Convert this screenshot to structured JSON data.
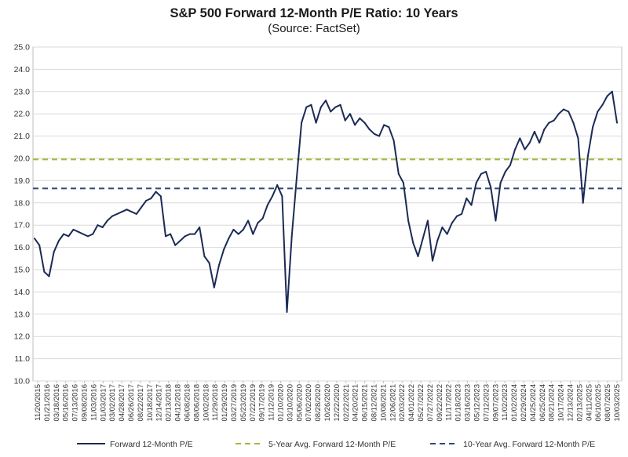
{
  "chart_data": {
    "type": "line",
    "title": "S&P 500 Forward 12-Month P/E Ratio: 10 Years",
    "subtitle": "(Source: FactSet)",
    "xlabel": "",
    "ylabel": "",
    "ylim": [
      10.0,
      25.0
    ],
    "yticks": [
      "10.0",
      "11.0",
      "12.0",
      "13.0",
      "14.0",
      "15.0",
      "16.0",
      "17.0",
      "18.0",
      "19.0",
      "20.0",
      "21.0",
      "22.0",
      "23.0",
      "24.0",
      "25.0"
    ],
    "xticks": [
      "11/20/2015",
      "01/21/2016",
      "03/18/2016",
      "05/16/2016",
      "07/13/2016",
      "09/08/2016",
      "11/03/2016",
      "01/03/2017",
      "03/02/2017",
      "04/28/2017",
      "06/26/2017",
      "08/22/2017",
      "10/18/2017",
      "12/14/2017",
      "02/13/2018",
      "04/12/2018",
      "06/08/2018",
      "08/06/2018",
      "10/02/2018",
      "11/29/2018",
      "01/29/2019",
      "03/27/2019",
      "05/23/2019",
      "07/22/2019",
      "09/17/2019",
      "11/12/2019",
      "01/10/2020",
      "03/10/2020",
      "05/06/2020",
      "07/02/2020",
      "08/28/2020",
      "10/26/2020",
      "12/22/2020",
      "02/22/2021",
      "04/20/2021",
      "06/15/2021",
      "08/12/2021",
      "10/08/2021",
      "12/06/2021",
      "02/03/2022",
      "04/01/2022",
      "05/27/2022",
      "07/27/2022",
      "09/22/2022",
      "11/17/2022",
      "01/18/2023",
      "03/16/2023",
      "05/12/2023",
      "07/12/2023",
      "09/07/2023",
      "11/02/2023",
      "01/02/2024",
      "02/29/2024",
      "04/25/2024",
      "06/25/2024",
      "08/21/2024",
      "10/17/2024",
      "12/13/2024",
      "02/13/2025",
      "04/11/2025",
      "06/10/2025",
      "08/07/2025",
      "10/03/2025"
    ],
    "grid": true,
    "legend_position": "bottom",
    "colors": {
      "main": "#1c2b55",
      "avg5": "#9bbb3c",
      "avg10": "#2e4a7a",
      "grid": "#d9d9d9"
    },
    "series": [
      {
        "name": "Forward 12-Month P/E",
        "style": "solid",
        "x": [
          "11/20/2015",
          "12/2015",
          "01/2016",
          "02/2016",
          "03/2016",
          "04/2016",
          "05/2016",
          "06/2016",
          "07/2016",
          "08/2016",
          "09/2016",
          "10/2016",
          "11/2016",
          "12/2016",
          "01/2017",
          "02/2017",
          "03/2017",
          "04/2017",
          "05/2017",
          "06/2017",
          "07/2017",
          "08/2017",
          "09/2017",
          "10/2017",
          "11/2017",
          "12/2017",
          "01/2018",
          "02/2018",
          "03/2018",
          "04/2018",
          "05/2018",
          "06/2018",
          "07/2018",
          "08/2018",
          "09/2018",
          "10/2018",
          "11/2018",
          "12/2018",
          "01/2019",
          "02/2019",
          "03/2019",
          "04/2019",
          "05/2019",
          "06/2019",
          "07/2019",
          "08/2019",
          "09/2019",
          "10/2019",
          "11/2019",
          "12/2019",
          "01/2020",
          "02/2020",
          "03/2020",
          "04/2020",
          "05/2020",
          "06/2020",
          "07/2020",
          "08/2020",
          "09/2020",
          "10/2020",
          "11/2020",
          "12/2020",
          "01/2021",
          "02/2021",
          "03/2021",
          "04/2021",
          "05/2021",
          "06/2021",
          "07/2021",
          "08/2021",
          "09/2021",
          "10/2021",
          "11/2021",
          "12/2021",
          "01/2022",
          "02/2022",
          "03/2022",
          "04/2022",
          "05/2022",
          "06/2022",
          "07/2022",
          "08/2022",
          "09/2022",
          "10/2022",
          "11/2022",
          "12/2022",
          "01/2023",
          "02/2023",
          "03/2023",
          "04/2023",
          "05/2023",
          "06/2023",
          "07/2023",
          "08/2023",
          "09/2023",
          "10/2023",
          "11/2023",
          "12/2023",
          "01/2024",
          "02/2024",
          "03/2024",
          "04/2024",
          "05/2024",
          "06/2024",
          "07/2024",
          "08/2024",
          "09/2024",
          "10/2024",
          "11/2024",
          "12/2024",
          "01/2025",
          "02/2025",
          "03/2025",
          "04/2025",
          "05/2025",
          "06/2025",
          "07/2025",
          "08/2025",
          "09/2025",
          "10/2025",
          "11/2025"
        ],
        "values": [
          16.4,
          16.1,
          14.9,
          14.7,
          15.8,
          16.3,
          16.6,
          16.5,
          16.8,
          16.7,
          16.6,
          16.5,
          16.6,
          17.0,
          16.9,
          17.2,
          17.4,
          17.5,
          17.6,
          17.7,
          17.6,
          17.5,
          17.8,
          18.1,
          18.2,
          18.5,
          18.3,
          16.5,
          16.6,
          16.1,
          16.3,
          16.5,
          16.6,
          16.6,
          16.9,
          15.6,
          15.3,
          14.2,
          15.2,
          15.9,
          16.4,
          16.8,
          16.6,
          16.8,
          17.2,
          16.6,
          17.1,
          17.3,
          17.9,
          18.3,
          18.8,
          18.3,
          13.1,
          16.5,
          19.1,
          21.6,
          22.3,
          22.4,
          21.6,
          22.3,
          22.6,
          22.1,
          22.3,
          22.4,
          21.7,
          22.0,
          21.5,
          21.8,
          21.6,
          21.3,
          21.1,
          21.0,
          21.5,
          21.4,
          20.8,
          19.3,
          18.9,
          17.2,
          16.2,
          15.6,
          16.4,
          17.2,
          15.4,
          16.3,
          16.9,
          16.6,
          17.1,
          17.4,
          17.5,
          18.2,
          17.9,
          18.9,
          19.3,
          19.4,
          18.7,
          17.2,
          18.9,
          19.4,
          19.7,
          20.4,
          20.9,
          20.4,
          20.7,
          21.2,
          20.7,
          21.3,
          21.6,
          21.7,
          22.0,
          22.2,
          22.1,
          21.6,
          20.9,
          18.0,
          20.1,
          21.4,
          22.1,
          22.4,
          22.8,
          23.0,
          21.6
        ]
      },
      {
        "name": "5-Year Avg. Forward 12-Month P/E",
        "style": "dashed",
        "constant": 19.95
      },
      {
        "name": "10-Year Avg. Forward 12-Month P/E",
        "style": "dashed",
        "constant": 18.65
      }
    ]
  }
}
